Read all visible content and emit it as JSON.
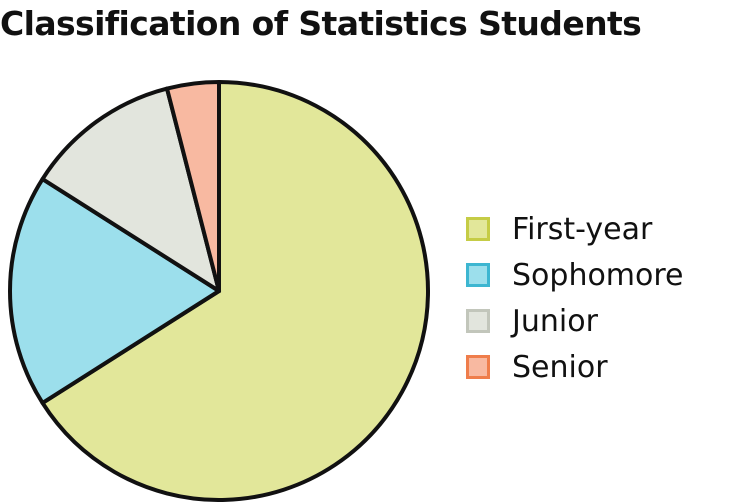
{
  "chart_data": {
    "type": "pie",
    "title": "Classification of Statistics Students",
    "categories": [
      "First-year",
      "Sophomore",
      "Junior",
      "Senior"
    ],
    "values": [
      66,
      18,
      12,
      4
    ],
    "colors": {
      "First-year": {
        "fill": "#e2e79a",
        "border": "#c5cc46"
      },
      "Sophomore": {
        "fill": "#9cdfec",
        "border": "#3db6d1"
      },
      "Junior": {
        "fill": "#e2e5dd",
        "border": "#c2c6bb"
      },
      "Senior": {
        "fill": "#f8b9a1",
        "border": "#ef7d4b"
      }
    },
    "start_angle": "12 o'clock",
    "direction": "clockwise",
    "legend_position": "right"
  }
}
